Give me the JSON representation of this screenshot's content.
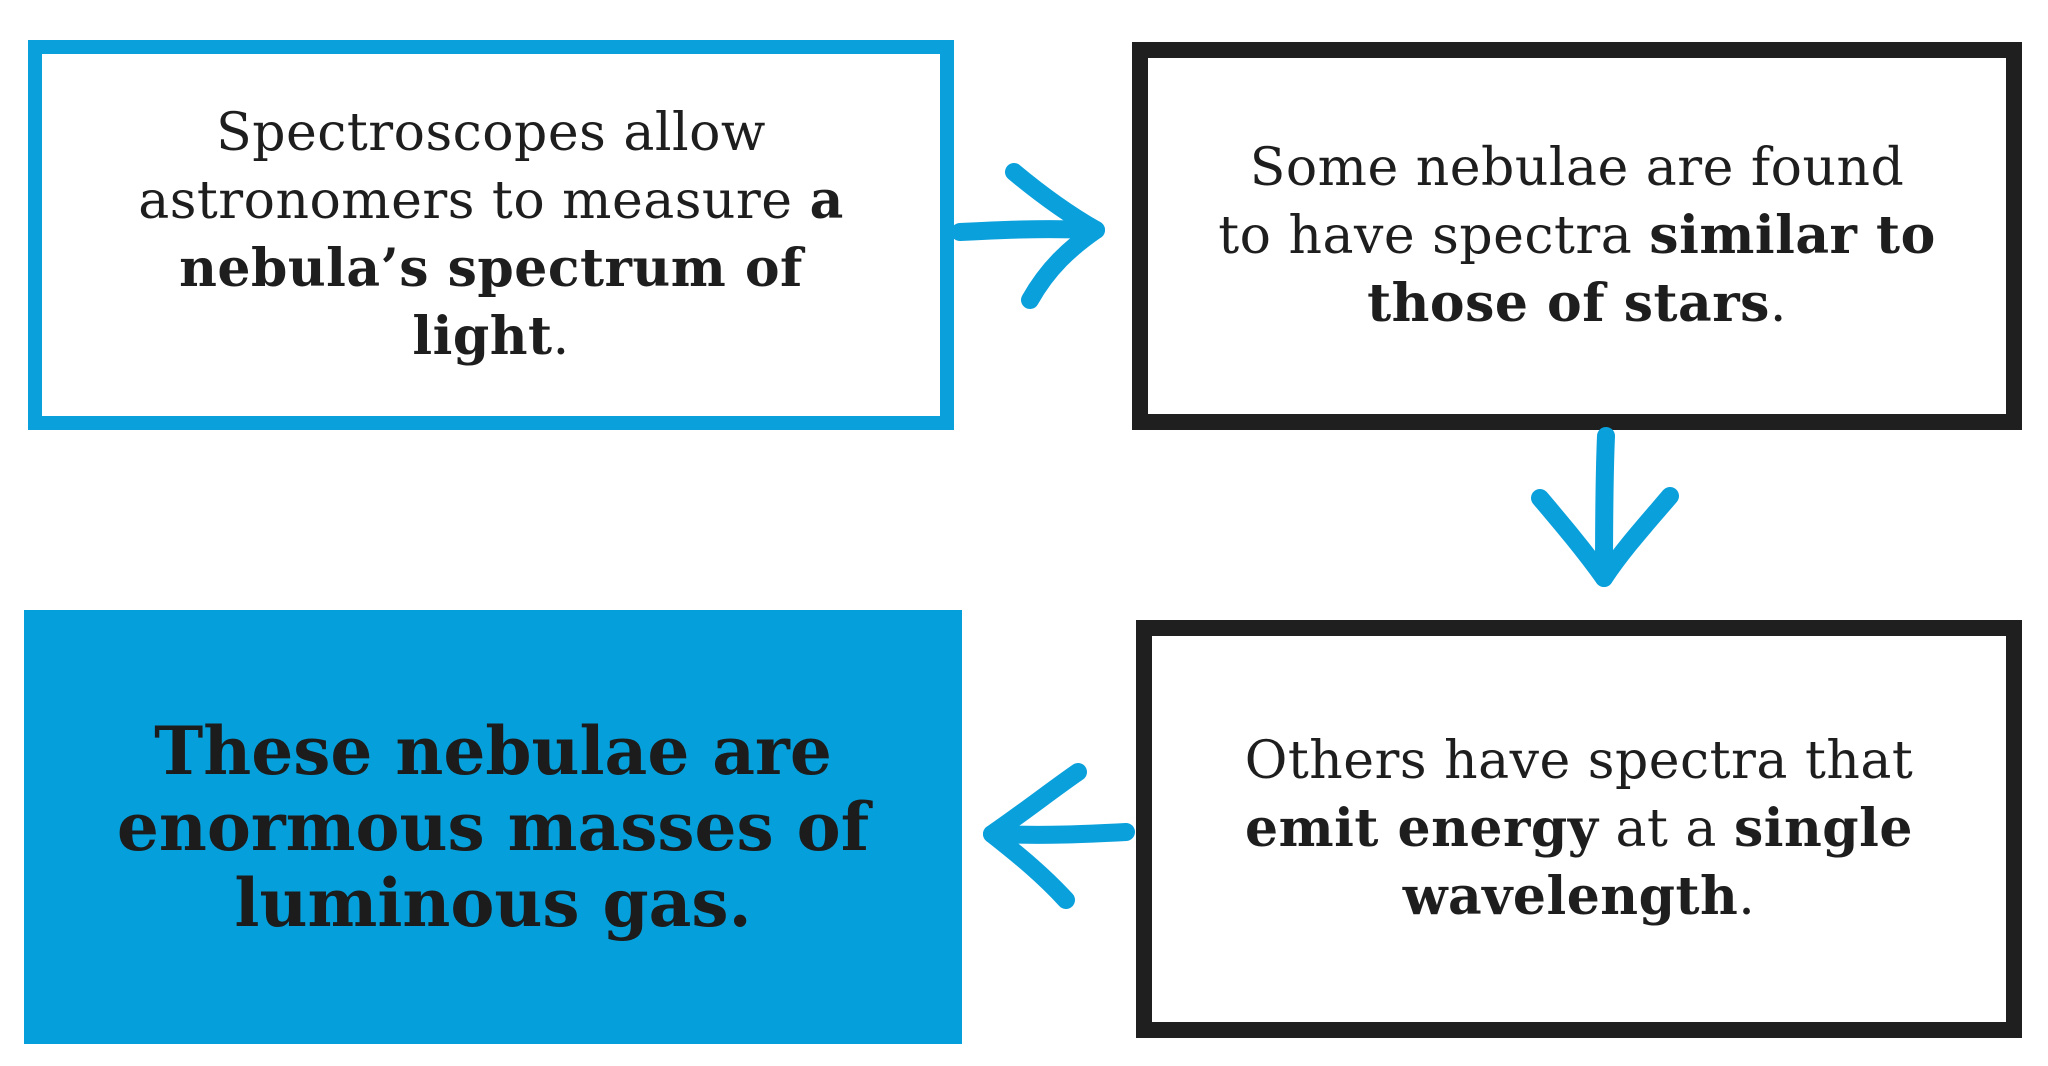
{
  "boxes": {
    "step1": {
      "text_a": "Spectroscopes allow astronomers to measure ",
      "bold_a": "a nebula’s spectrum of light",
      "text_b": "."
    },
    "step2": {
      "text_a": "Some nebulae are found to have spectra ",
      "bold_a": "similar to those of stars",
      "text_b": "."
    },
    "step3": {
      "text_a": "Others have spectra that ",
      "bold_a": "emit energy",
      "text_b": " at a ",
      "bold_b": "single wavelength",
      "text_c": "."
    },
    "step4": {
      "bold_a": "These nebulae are enormous masses of luminous gas."
    }
  },
  "colors": {
    "accent_blue": "#0aa0dc",
    "border_dark": "#1f1f1f",
    "text": "#1e1e1e"
  }
}
